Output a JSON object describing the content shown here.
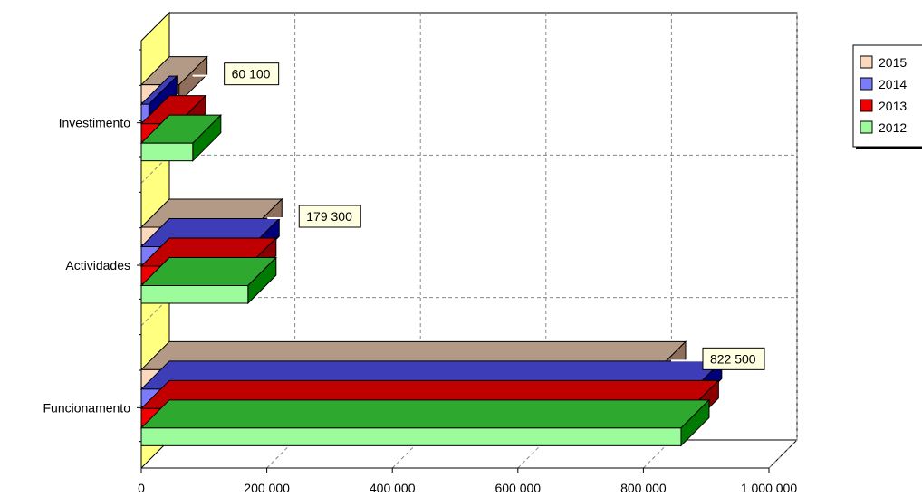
{
  "chart_data": {
    "type": "bar",
    "orientation": "horizontal",
    "three_d": true,
    "categories": [
      "Funcionamento",
      "Actividades",
      "Investimento"
    ],
    "series": [
      {
        "name": "2015",
        "values": [
          822500,
          179300,
          60100
        ],
        "color": "#fcd8bc",
        "side": "#8d6f5c",
        "top": "#b39a86"
      },
      {
        "name": "2014",
        "values": [
          880000,
          175000,
          12000
        ],
        "color": "#7b7bfb",
        "side": "#00007a",
        "top": "#3d3db8"
      },
      {
        "name": "2013",
        "values": [
          875000,
          170000,
          58000
        ],
        "color": "#f00000",
        "side": "#8a0000",
        "top": "#c00000"
      },
      {
        "name": "2012",
        "values": [
          860000,
          170000,
          82000
        ],
        "color": "#9cfc9c",
        "side": "#007a00",
        "top": "#2ea82e"
      }
    ],
    "xlim": [
      0,
      1000000
    ],
    "x_ticks": [
      0,
      200000,
      400000,
      600000,
      800000,
      1000000
    ],
    "x_tick_labels": [
      "0",
      "200 000",
      "400 000",
      "600 000",
      "800 000",
      "1 000 000"
    ],
    "data_labels": [
      {
        "series": "2015",
        "category": "Funcionamento",
        "text": "822 500"
      },
      {
        "series": "2015",
        "category": "Actividades",
        "text": "179 300"
      },
      {
        "series": "2015",
        "category": "Investimento",
        "text": "60 100"
      }
    ],
    "grid": true,
    "legend_position": "top-right",
    "title": "",
    "xlabel": "",
    "ylabel": ""
  }
}
